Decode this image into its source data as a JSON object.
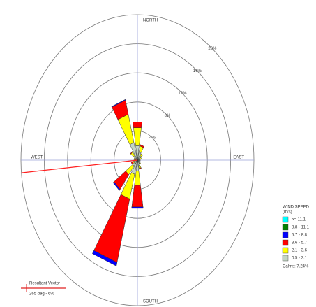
{
  "chart_data": {
    "type": "windrose",
    "categories": [
      "NORTH",
      null,
      null,
      null,
      "EAST",
      null,
      null,
      null,
      "SOUTH",
      null,
      null,
      null,
      "WEST",
      null,
      null,
      null
    ],
    "rlim": [
      0,
      20
    ],
    "rticks": [
      {
        "value": 4,
        "label": "4%"
      },
      {
        "value": 8,
        "label": "8%"
      },
      {
        "value": 12,
        "label": "12%"
      },
      {
        "value": 16,
        "label": "16%"
      },
      {
        "value": 20,
        "label": "20%"
      }
    ],
    "legend_title": "WIND SPEED",
    "legend_units": "(m/s)",
    "series": [
      {
        "name": "0.5 - 2.1",
        "color": "#c3d6c3",
        "values": [
          2.0,
          1.2,
          0.8,
          0.5,
          0.4,
          0.4,
          0.5,
          0.8,
          1.5,
          2.0,
          1.0,
          0.5,
          0.4,
          0.4,
          0.8,
          2.5
        ]
      },
      {
        "name": "2.1 - 3.6",
        "color": "#ffff00",
        "values": [
          2.5,
          0.8,
          0.3,
          0.2,
          0.1,
          0.1,
          0.2,
          0.4,
          2.0,
          3.5,
          1.5,
          0.4,
          0.2,
          0.2,
          0.6,
          4.0
        ]
      },
      {
        "name": "3.6 - 5.7",
        "color": "#ff0000",
        "values": [
          0.8,
          0.2,
          0,
          0,
          0,
          0,
          0,
          0.1,
          3.0,
          9.0,
          2.5,
          0.2,
          0,
          0,
          0.1,
          2.0
        ]
      },
      {
        "name": "5.7 - 8.8",
        "color": "#0000ff",
        "values": [
          0,
          0,
          0,
          0,
          0,
          0,
          0,
          0,
          0.2,
          0.5,
          0.2,
          0,
          0,
          0,
          0,
          0.1
        ]
      },
      {
        "name": "8.8 - 11.1",
        "color": "#008000",
        "values": [
          0,
          0,
          0,
          0,
          0,
          0,
          0,
          0,
          0,
          0,
          0,
          0,
          0,
          0,
          0,
          0
        ]
      },
      {
        "name": ">= 11.1",
        "color": "#00ffff",
        "values": [
          0,
          0,
          0,
          0,
          0,
          0,
          0,
          0,
          0,
          0,
          0,
          0,
          0,
          0,
          0,
          0
        ]
      }
    ],
    "calms": "Calms: 7.24%",
    "resultant": {
      "label": "Resultant Vector",
      "text": "265 deg - 6%",
      "direction": 265,
      "color": "#ff2020"
    }
  }
}
